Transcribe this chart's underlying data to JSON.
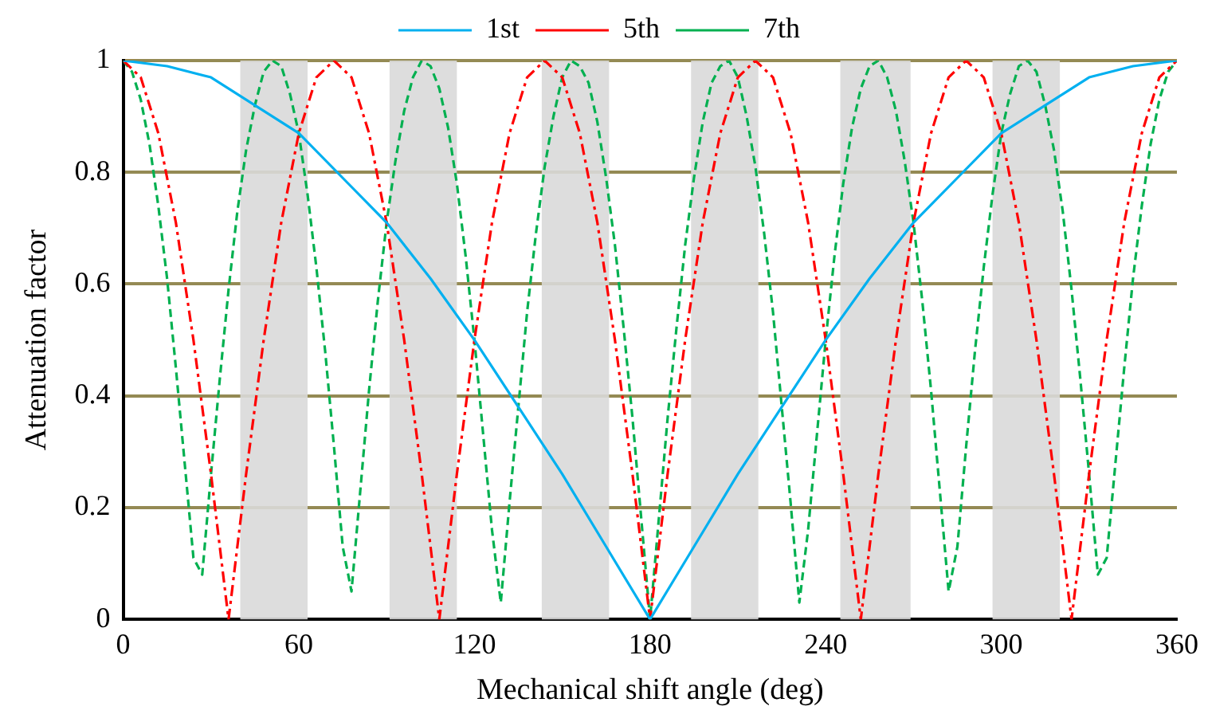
{
  "chart_data": {
    "type": "line",
    "xlabel": "Mechanical shift angle (deg)",
    "ylabel": "Attenuation factor",
    "xlim": [
      0,
      360
    ],
    "xticks": [
      0,
      60,
      120,
      180,
      240,
      300,
      360
    ],
    "ylim": [
      0,
      1
    ],
    "yticks": [
      0,
      0.2,
      0.4,
      0.6,
      0.8,
      1
    ],
    "grid": "y",
    "legend": "top",
    "marker": "none",
    "bands": [
      {
        "axis": "x",
        "from": 40,
        "to": 63,
        "color": "#d9d9d9"
      },
      {
        "axis": "x",
        "from": 91,
        "to": 114,
        "color": "#d9d9d9"
      },
      {
        "axis": "x",
        "from": 143,
        "to": 166,
        "color": "#d9d9d9"
      },
      {
        "axis": "x",
        "from": 194,
        "to": 217,
        "color": "#d9d9d9"
      },
      {
        "axis": "x",
        "from": 245,
        "to": 269,
        "color": "#d9d9d9"
      },
      {
        "axis": "x",
        "from": 297,
        "to": 320,
        "color": "#d9d9d9"
      }
    ],
    "series": [
      {
        "name": "1st",
        "color": "#00b0f0",
        "line_style": "solid",
        "x": [
          0,
          15,
          30,
          45,
          60,
          75,
          90,
          105,
          120,
          135,
          150,
          165,
          180,
          195,
          210,
          225,
          240,
          255,
          270,
          285,
          300,
          315,
          330,
          345,
          360
        ],
        "values": [
          1,
          0.99,
          0.97,
          0.92,
          0.87,
          0.79,
          0.71,
          0.61,
          0.5,
          0.38,
          0.26,
          0.13,
          0,
          0.13,
          0.26,
          0.38,
          0.5,
          0.61,
          0.71,
          0.79,
          0.87,
          0.92,
          0.97,
          0.99,
          1
        ]
      },
      {
        "name": "5th",
        "color": "#ff0000",
        "line_style": "dashdot",
        "x": [
          0,
          6,
          12,
          18,
          24,
          30,
          36,
          42,
          48,
          54,
          60,
          66,
          72,
          78,
          84,
          90,
          96,
          102,
          108,
          114,
          120,
          126,
          132,
          138,
          144,
          150,
          156,
          162,
          168,
          174,
          180,
          186,
          192,
          198,
          204,
          210,
          216,
          222,
          228,
          234,
          240,
          246,
          252,
          258,
          264,
          270,
          276,
          282,
          288,
          294,
          300,
          306,
          312,
          318,
          324,
          330,
          336,
          342,
          348,
          354,
          360
        ],
        "values": [
          1,
          0.97,
          0.87,
          0.71,
          0.5,
          0.26,
          0,
          0.26,
          0.5,
          0.71,
          0.87,
          0.97,
          1,
          0.97,
          0.87,
          0.71,
          0.5,
          0.26,
          0,
          0.26,
          0.5,
          0.71,
          0.87,
          0.97,
          1,
          0.97,
          0.87,
          0.71,
          0.5,
          0.26,
          0,
          0.26,
          0.5,
          0.71,
          0.87,
          0.97,
          1,
          0.97,
          0.87,
          0.71,
          0.5,
          0.26,
          0,
          0.26,
          0.5,
          0.71,
          0.87,
          0.97,
          1,
          0.97,
          0.87,
          0.71,
          0.5,
          0.26,
          0,
          0.26,
          0.5,
          0.71,
          0.87,
          0.97,
          1
        ]
      },
      {
        "name": "7th",
        "color": "#00b050",
        "line_style": "dashed",
        "x": [
          0,
          3,
          6,
          9,
          12,
          15,
          18,
          21,
          24,
          27,
          30,
          33,
          36,
          39,
          42,
          45,
          48,
          51,
          54,
          57,
          60,
          63,
          66,
          69,
          72,
          75,
          78,
          81,
          84,
          87,
          90,
          93,
          96,
          99,
          102,
          105,
          108,
          111,
          114,
          117,
          120,
          123,
          126,
          129,
          132,
          135,
          138,
          141,
          144,
          147,
          150,
          153,
          156,
          159,
          162,
          165,
          168,
          171,
          174,
          177,
          180,
          183,
          186,
          189,
          192,
          195,
          198,
          201,
          204,
          207,
          210,
          213,
          216,
          219,
          222,
          225,
          228,
          231,
          234,
          237,
          240,
          243,
          246,
          249,
          252,
          255,
          258,
          261,
          264,
          267,
          270,
          273,
          276,
          279,
          282,
          285,
          288,
          291,
          294,
          297,
          300,
          303,
          306,
          309,
          312,
          315,
          318,
          321,
          324,
          327,
          330,
          333,
          336,
          339,
          342,
          345,
          348,
          351,
          354,
          357,
          360
        ],
        "values": [
          1,
          0.98,
          0.93,
          0.85,
          0.74,
          0.61,
          0.45,
          0.28,
          0.11,
          0.08,
          0.26,
          0.43,
          0.59,
          0.73,
          0.84,
          0.92,
          0.98,
          1,
          0.99,
          0.94,
          0.87,
          0.76,
          0.63,
          0.48,
          0.31,
          0.13,
          0.05,
          0.23,
          0.41,
          0.57,
          0.71,
          0.82,
          0.91,
          0.97,
          1,
          0.99,
          0.95,
          0.88,
          0.78,
          0.65,
          0.5,
          0.33,
          0.16,
          0.03,
          0.21,
          0.38,
          0.55,
          0.69,
          0.81,
          0.9,
          0.97,
          1,
          0.99,
          0.96,
          0.89,
          0.79,
          0.67,
          0.52,
          0.36,
          0.18,
          0,
          0.18,
          0.36,
          0.52,
          0.67,
          0.79,
          0.89,
          0.96,
          0.99,
          1,
          0.97,
          0.9,
          0.81,
          0.69,
          0.55,
          0.38,
          0.21,
          0.03,
          0.16,
          0.33,
          0.5,
          0.65,
          0.78,
          0.88,
          0.95,
          0.99,
          1,
          0.97,
          0.91,
          0.82,
          0.71,
          0.57,
          0.41,
          0.23,
          0.05,
          0.13,
          0.31,
          0.48,
          0.63,
          0.76,
          0.87,
          0.94,
          0.99,
          1,
          0.98,
          0.92,
          0.84,
          0.73,
          0.59,
          0.43,
          0.26,
          0.08,
          0.11,
          0.28,
          0.45,
          0.61,
          0.74,
          0.85,
          0.93,
          0.98,
          1
        ]
      }
    ]
  }
}
